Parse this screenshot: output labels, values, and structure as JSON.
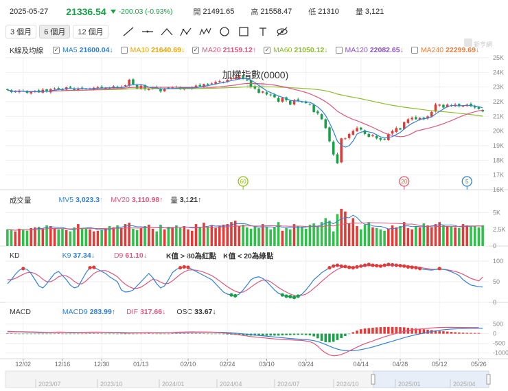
{
  "header": {
    "date": "2025-05-27",
    "price": "21336.54",
    "change": "-200.03 (-0.93%)",
    "open_label": "開",
    "open": "21491.65",
    "high_label": "高",
    "high": "21558.47",
    "low_label": "低",
    "low": "21310",
    "volume_label": "量",
    "volume": "3,121"
  },
  "toolbar": {
    "periods": [
      "3 個月",
      "6 個月",
      "12 個月"
    ],
    "active_period": "6 個月",
    "tools": [
      "line-tool-icon",
      "horizontal-line-icon",
      "angle-tool-icon",
      "pattern-abc-icon",
      "pattern-wave-icon",
      "circle-tool-icon",
      "rectangle-tool-icon",
      "text-tool-icon",
      "hide-eye-icon"
    ]
  },
  "legends": {
    "kline": {
      "title": "K線及均線",
      "items": [
        {
          "label": "MA5",
          "value": "21600.04",
          "arrow": "↓",
          "checked": true,
          "color": "#2f7fd8"
        },
        {
          "label": "MA10",
          "value": "21640.69",
          "arrow": "↓",
          "checked": false,
          "color": "#f0a500"
        },
        {
          "label": "MA20",
          "value": "21159.12",
          "arrow": "↑",
          "checked": true,
          "color": "#e0557a"
        },
        {
          "label": "MA60",
          "value": "21050.12",
          "arrow": "↓",
          "checked": true,
          "color": "#8cbd2c"
        },
        {
          "label": "MA120",
          "value": "22082.65",
          "arrow": "↓",
          "checked": false,
          "color": "#8a4fd0"
        },
        {
          "label": "MA240",
          "value": "22299.69",
          "arrow": "↓",
          "checked": false,
          "color": "#ee7d3c"
        }
      ]
    },
    "volume": {
      "title": "成交量",
      "items": [
        {
          "label": "MV5",
          "value": "3,023.3",
          "arrow": "↑",
          "color": "#2f7fd8"
        },
        {
          "label": "MV20",
          "value": "3,110.98",
          "arrow": "↑",
          "color": "#e0557a"
        },
        {
          "label": "量",
          "value": "3,121",
          "arrow": "↑",
          "color": "#333333"
        }
      ]
    },
    "kd": {
      "title": "KD",
      "items": [
        {
          "label": "K9",
          "value": "37.34",
          "arrow": "↓",
          "color": "#2f7fd8"
        },
        {
          "label": "D9",
          "value": "61.10",
          "arrow": "↓",
          "color": "#e0557a"
        }
      ],
      "notes": [
        "K值 > 80為紅點",
        "K值 < 20為綠點"
      ]
    },
    "macd": {
      "title": "MACD",
      "items": [
        {
          "label": "MACD9",
          "value": "283.99",
          "arrow": "↑",
          "color": "#2f7fd8"
        },
        {
          "label": "DIF",
          "value": "317.66",
          "arrow": "↓",
          "color": "#e0557a"
        },
        {
          "label": "OSC",
          "value": "33.67",
          "arrow": "↓",
          "color": "#333333"
        }
      ]
    }
  },
  "chart_data": {
    "type": "candlestick",
    "title": "加權指數(0000)",
    "watermark": "鉅亨網",
    "logo_text": "鉅亨網",
    "price_axis": {
      "ticks": [
        "25K",
        "24K",
        "23K",
        "22K",
        "21K",
        "20K",
        "19K",
        "18K",
        "17K",
        "16K"
      ],
      "min": 16000,
      "max": 25000
    },
    "volume_axis": {
      "ticks": [
        "5K",
        "2.5K",
        "0"
      ],
      "max": 6000
    },
    "kd_axis": {
      "ticks": [
        "100",
        "50",
        "0"
      ],
      "min": 0,
      "max": 100
    },
    "macd_axis": {
      "ticks": [
        "500",
        "0",
        "-500",
        "-1000"
      ],
      "min": -1300,
      "max": 700
    },
    "x_ticks": [
      "12/02",
      "12/16",
      "12/30",
      "01/13",
      "02/10",
      "02/24",
      "03/10",
      "03/24",
      "04/14",
      "04/28",
      "05/12",
      "05/26"
    ],
    "x_tick_index": [
      4,
      14,
      24,
      34,
      46,
      56,
      66,
      76,
      90,
      100,
      110,
      120
    ],
    "navigator_labels": [
      "2023/07",
      "2023/10",
      "2024/01",
      "2024/04",
      "2024/07",
      "2024/10",
      "2025/01",
      "2025/04"
    ],
    "ma_markers": [
      {
        "label": "60",
        "index": 60
      },
      {
        "label": "20",
        "index": 101
      },
      {
        "label": "5",
        "index": 117
      }
    ],
    "closes": [
      22800,
      22650,
      22700,
      22750,
      22700,
      22600,
      22680,
      22720,
      22640,
      22820,
      22700,
      22860,
      22900,
      22880,
      22820,
      22980,
      22950,
      22780,
      22900,
      22920,
      22870,
      22900,
      22950,
      22980,
      22930,
      22960,
      22900,
      23050,
      22950,
      23000,
      23120,
      23500,
      23200,
      22900,
      23100,
      22850,
      22880,
      22960,
      22950,
      22700,
      22900,
      22950,
      22980,
      23000,
      22850,
      22900,
      22950,
      22980,
      23100,
      23050,
      23200,
      23150,
      23250,
      23350,
      23400,
      23350,
      23500,
      23600,
      23600,
      23700,
      23550,
      23450,
      23000,
      22900,
      22600,
      22700,
      22500,
      22450,
      22300,
      22000,
      22250,
      22100,
      21800,
      22100,
      22050,
      22000,
      21900,
      21800,
      21300,
      21200,
      20800,
      20200,
      19300,
      18400,
      17800,
      19500,
      19500,
      19800,
      20000,
      20200,
      20100,
      19800,
      19600,
      19700,
      19500,
      19400,
      19400,
      19800,
      20000,
      20200,
      20100,
      20600,
      20800,
      20900,
      20800,
      20900,
      20800,
      21000,
      21300,
      21800,
      21800,
      21600,
      21800,
      21700,
      21800,
      21700,
      21700,
      21800,
      21700,
      21600,
      21500,
      21336
    ],
    "volumes": [
      2500,
      2400,
      2200,
      2600,
      2500,
      2300,
      2700,
      2800,
      2900,
      2600,
      3100,
      3000,
      2700,
      2500,
      2600,
      2400,
      2200,
      2800,
      3300,
      2700,
      2600,
      2500,
      2200,
      2300,
      2500,
      2600,
      3000,
      2800,
      3100,
      2700,
      3300,
      3500,
      2600,
      2400,
      2700,
      3000,
      3200,
      2600,
      2200,
      3200,
      2500,
      2900,
      2800,
      3100,
      2700,
      3000,
      2500,
      2300,
      3300,
      2800,
      3500,
      2900,
      3100,
      2700,
      3000,
      3200,
      3300,
      3600,
      3800,
      3000,
      3200,
      2800,
      2600,
      3000,
      2700,
      3300,
      2900,
      2500,
      2800,
      3600,
      2300,
      2700,
      2500,
      3300,
      3000,
      2800,
      2600,
      3200,
      3400,
      3000,
      3600,
      4200,
      3800,
      2200,
      4800,
      5600,
      5200,
      3400,
      4200,
      3000,
      2500,
      3200,
      3600,
      2800,
      2700,
      2500,
      2300,
      2600,
      3100,
      2800,
      3000,
      3600,
      2700,
      2500,
      3000,
      2800,
      3400,
      3100,
      2800,
      3300,
      3600,
      3100,
      3000,
      2900,
      2800,
      2700,
      3300,
      3100,
      2900,
      3000,
      2800,
      3121
    ],
    "k9": [
      45,
      55,
      68,
      78,
      82,
      80,
      70,
      55,
      40,
      35,
      45,
      58,
      70,
      75,
      65,
      55,
      42,
      35,
      38,
      55,
      72,
      84,
      85,
      80,
      75,
      70,
      62,
      56,
      50,
      30,
      25,
      26,
      30,
      40,
      50,
      60,
      70,
      60,
      45,
      35,
      40,
      55,
      72,
      80,
      84,
      86,
      85,
      80,
      75,
      70,
      65,
      60,
      55,
      45,
      35,
      25,
      20,
      18,
      16,
      20,
      30,
      42,
      55,
      60,
      62,
      58,
      50,
      40,
      30,
      22,
      18,
      15,
      14,
      12,
      15,
      20,
      30,
      42,
      55,
      63,
      72,
      78,
      84,
      88,
      90,
      88,
      87,
      85,
      84,
      86,
      88,
      90,
      92,
      90,
      89,
      88,
      90,
      92,
      91,
      90,
      89,
      88,
      86,
      85,
      84,
      82,
      80,
      79,
      78,
      80,
      82,
      80,
      78,
      74,
      70,
      65,
      55,
      48,
      42,
      40,
      38,
      37.34
    ],
    "d9": [
      55,
      55,
      58,
      63,
      68,
      72,
      73,
      70,
      64,
      56,
      50,
      50,
      55,
      62,
      65,
      64,
      59,
      51,
      45,
      45,
      52,
      61,
      70,
      75,
      77,
      77,
      73,
      68,
      62,
      52,
      44,
      38,
      34,
      34,
      37,
      43,
      50,
      56,
      54,
      49,
      45,
      46,
      52,
      60,
      68,
      74,
      78,
      79,
      78,
      76,
      73,
      69,
      65,
      59,
      52,
      45,
      38,
      32,
      27,
      24,
      25,
      30,
      37,
      44,
      50,
      54,
      54,
      50,
      43,
      36,
      30,
      25,
      20,
      17,
      16,
      17,
      20,
      26,
      34,
      42,
      51,
      59,
      67,
      74,
      80,
      84,
      86,
      86,
      86,
      86,
      87,
      88,
      89,
      89,
      89,
      89,
      89,
      90,
      90,
      90,
      90,
      89,
      88,
      87,
      86,
      85,
      83,
      82,
      80,
      80,
      80,
      80,
      79,
      77,
      75,
      72,
      68,
      63,
      58,
      55,
      52,
      61.1
    ],
    "dif": [
      120,
      110,
      100,
      95,
      90,
      85,
      80,
      70,
      60,
      60,
      65,
      70,
      75,
      80,
      75,
      70,
      60,
      55,
      60,
      65,
      70,
      75,
      80,
      80,
      75,
      70,
      65,
      60,
      55,
      40,
      30,
      35,
      40,
      45,
      50,
      55,
      60,
      55,
      45,
      40,
      45,
      50,
      60,
      70,
      80,
      85,
      90,
      92,
      90,
      88,
      85,
      80,
      75,
      65,
      55,
      40,
      20,
      0,
      -30,
      -60,
      -90,
      -120,
      -150,
      -170,
      -190,
      -210,
      -230,
      -250,
      -270,
      -290,
      -300,
      -310,
      -320,
      -330,
      -340,
      -350,
      -380,
      -420,
      -500,
      -650,
      -850,
      -1000,
      -1100,
      -1150,
      -1130,
      -1080,
      -1000,
      -900,
      -800,
      -700,
      -600,
      -520,
      -450,
      -380,
      -300,
      -230,
      -160,
      -100,
      -40,
      20,
      70,
      120,
      160,
      190,
      220,
      240,
      260,
      280,
      300,
      310,
      320,
      325,
      330,
      330,
      328,
      325,
      322,
      320,
      319,
      318,
      317.66
    ],
    "macd9": [
      100,
      100,
      99,
      98,
      96,
      93,
      90,
      86,
      80,
      75,
      72,
      71,
      72,
      74,
      74,
      73,
      70,
      67,
      65,
      65,
      66,
      68,
      70,
      72,
      72,
      72,
      70,
      68,
      65,
      60,
      54,
      50,
      48,
      47,
      48,
      50,
      52,
      53,
      52,
      50,
      49,
      49,
      51,
      55,
      60,
      65,
      70,
      74,
      77,
      79,
      80,
      80,
      79,
      76,
      72,
      66,
      57,
      45,
      30,
      10,
      -10,
      -30,
      -50,
      -70,
      -90,
      -110,
      -130,
      -150,
      -170,
      -190,
      -210,
      -230,
      -250,
      -265,
      -280,
      -295,
      -310,
      -330,
      -360,
      -410,
      -480,
      -560,
      -650,
      -730,
      -800,
      -850,
      -880,
      -890,
      -880,
      -860,
      -830,
      -790,
      -740,
      -690,
      -630,
      -570,
      -510,
      -450,
      -390,
      -330,
      -270,
      -210,
      -150,
      -100,
      -50,
      -10,
      30,
      70,
      110,
      150,
      180,
      200,
      220,
      240,
      250,
      260,
      268,
      274,
      278,
      281,
      283,
      283.99
    ]
  }
}
